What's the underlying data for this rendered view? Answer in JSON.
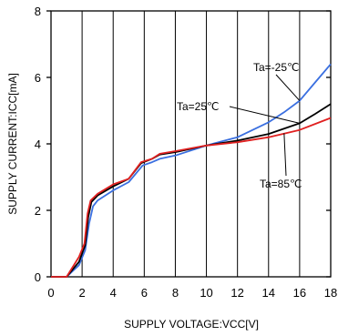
{
  "chart_data": {
    "type": "line",
    "title": "",
    "xlabel": "SUPPLY VOLTAGE:VCC[V]",
    "ylabel": "SUPPLY CURRENT:ICC[mA]",
    "xlim": [
      0,
      18
    ],
    "ylim": [
      0,
      8
    ],
    "x_ticks": [
      "0",
      "2",
      "4",
      "6",
      "8",
      "10",
      "12",
      "14",
      "16",
      "18"
    ],
    "y_ticks": [
      "0",
      "2",
      "4",
      "6",
      "8"
    ],
    "grid": "vertical lines at each x tick",
    "legend": "none (curves labelled directly on the plot)",
    "series": [
      {
        "name": "Ta=-25℃",
        "color": "#3a6fe0",
        "x": [
          0,
          1,
          1.8,
          2.2,
          2.45,
          2.7,
          3.0,
          4.0,
          5.0,
          5.9,
          6.5,
          7.0,
          8.0,
          10.0,
          12.0,
          14.0,
          15.0,
          16.0,
          17.0,
          18.0
        ],
        "y": [
          0,
          0,
          0.35,
          0.8,
          1.6,
          2.12,
          2.3,
          2.6,
          2.85,
          3.35,
          3.45,
          3.55,
          3.65,
          3.95,
          4.2,
          4.65,
          4.95,
          5.3,
          5.85,
          6.4
        ]
      },
      {
        "name": "Ta=25℃",
        "color": "#000000",
        "x": [
          0,
          1,
          1.8,
          2.2,
          2.4,
          2.6,
          3.0,
          4.0,
          5.0,
          5.8,
          6.5,
          7.0,
          8.0,
          10.0,
          12.0,
          14.0,
          16.0,
          17.0,
          18.0
        ],
        "y": [
          0,
          0,
          0.45,
          0.95,
          1.8,
          2.25,
          2.45,
          2.72,
          2.95,
          3.42,
          3.55,
          3.68,
          3.75,
          3.95,
          4.1,
          4.3,
          4.62,
          4.9,
          5.2
        ]
      },
      {
        "name": "Ta=85℃",
        "color": "#e02020",
        "x": [
          0,
          1,
          1.8,
          2.15,
          2.35,
          2.55,
          3.0,
          4.0,
          5.0,
          5.8,
          6.5,
          7.0,
          8.0,
          10.0,
          12.0,
          14.0,
          16.0,
          17.0,
          18.0
        ],
        "y": [
          0,
          0,
          0.6,
          1.0,
          1.9,
          2.3,
          2.5,
          2.78,
          2.95,
          3.45,
          3.55,
          3.7,
          3.78,
          3.95,
          4.05,
          4.2,
          4.42,
          4.6,
          4.78
        ]
      }
    ],
    "annotations": [
      {
        "text": "Ta=-25℃",
        "points_to": "Ta=-25℃ curve near VCC=16V"
      },
      {
        "text": "Ta=25℃",
        "points_to": "Ta=25℃ curve near VCC=16V"
      },
      {
        "text": "Ta=85℃",
        "points_to": "Ta=85℃ curve near VCC=15V"
      }
    ]
  }
}
